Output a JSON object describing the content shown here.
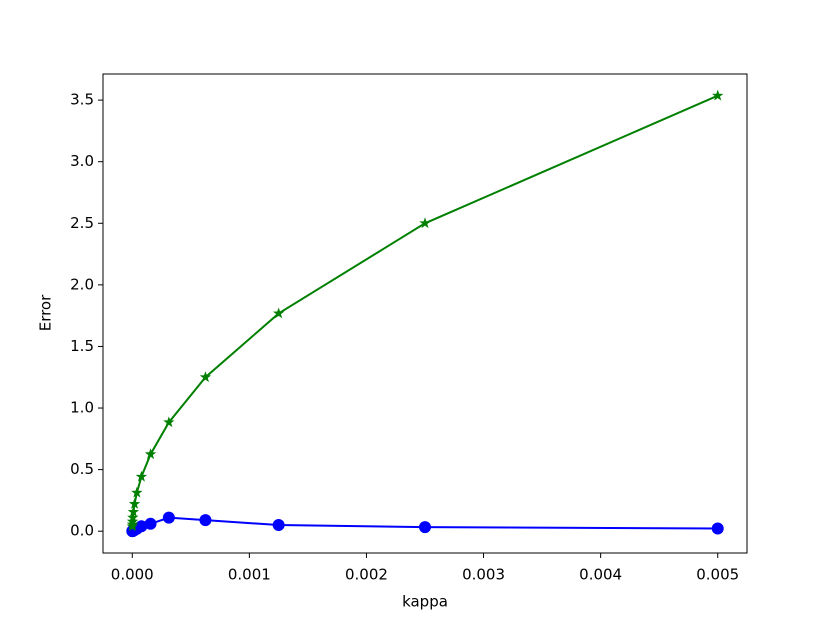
{
  "chart_data": {
    "type": "line",
    "x_label": "kappa",
    "y_label": "Error",
    "x": [
      0.005,
      0.0025,
      0.00125,
      0.000625,
      0.0003125,
      0.00015625,
      7.8125e-05,
      3.90625e-05,
      1.953125e-05,
      9.765625e-06,
      4.8828125e-06,
      2.44140625e-06,
      1.220703125e-06,
      6.103515625e-07
    ],
    "series": [
      {
        "color": "#0000ff",
        "marker": "circle",
        "values": [
          0.022,
          0.033,
          0.05,
          0.09,
          0.11,
          0.06,
          0.04,
          0.02,
          0.01,
          0.005,
          0.003,
          0.002,
          0.001,
          0.0005
        ]
      },
      {
        "color": "#008000",
        "marker": "star",
        "values": [
          3.536,
          2.5,
          1.768,
          1.25,
          0.884,
          0.625,
          0.442,
          0.3125,
          0.221,
          0.156,
          0.11,
          0.078,
          0.055,
          0.039
        ]
      }
    ],
    "xlim": [
      -0.00025,
      0.00525
    ],
    "ylim": [
      -0.177,
      3.712
    ],
    "xticks": [
      {
        "value": 0,
        "label": "0.000"
      },
      {
        "value": 0.001,
        "label": "0.001"
      },
      {
        "value": 0.002,
        "label": "0.002"
      },
      {
        "value": 0.003,
        "label": "0.003"
      },
      {
        "value": 0.004,
        "label": "0.004"
      },
      {
        "value": 0.005,
        "label": "0.005"
      }
    ],
    "yticks": [
      {
        "value": 0,
        "label": "0.0"
      },
      {
        "value": 0.5,
        "label": "0.5"
      },
      {
        "value": 1,
        "label": "1.0"
      },
      {
        "value": 1.5,
        "label": "1.5"
      },
      {
        "value": 2,
        "label": "2.0"
      },
      {
        "value": 2.5,
        "label": "2.5"
      },
      {
        "value": 3,
        "label": "3.0"
      },
      {
        "value": 3.5,
        "label": "3.5"
      }
    ],
    "grid": false
  }
}
